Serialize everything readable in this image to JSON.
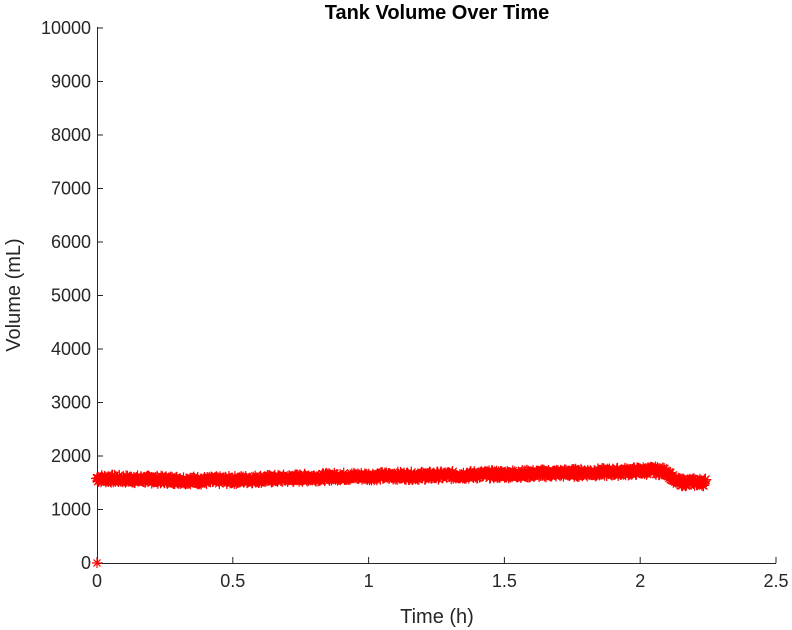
{
  "chart_data": {
    "type": "scatter",
    "title": "Tank Volume Over Time",
    "xlabel": "Time (h)",
    "ylabel": "Volume (mL)",
    "xlim": [
      0,
      2.5
    ],
    "ylim": [
      0,
      10000
    ],
    "xticks": [
      "0",
      "0.5",
      "1",
      "1.5",
      "2",
      "2.5"
    ],
    "yticks": [
      "0",
      "1000",
      "2000",
      "3000",
      "4000",
      "5000",
      "6000",
      "7000",
      "8000",
      "9000",
      "10000"
    ],
    "grid": false,
    "legend": "none",
    "marker": "asterisk",
    "color": "#ff0000",
    "series": [
      {
        "x": [
          0,
          0.1,
          0.2,
          0.3,
          0.4,
          0.5,
          0.6,
          0.7,
          0.8,
          0.9,
          1.0,
          1.1,
          1.2,
          1.3,
          1.4,
          1.5,
          1.6,
          1.7,
          1.8,
          1.9,
          2.0,
          2.05,
          2.1,
          2.13,
          2.16,
          2.2,
          2.24
        ],
        "y": [
          1580,
          1570,
          1560,
          1550,
          1540,
          1550,
          1570,
          1580,
          1600,
          1620,
          1620,
          1630,
          1630,
          1640,
          1650,
          1660,
          1670,
          1680,
          1690,
          1700,
          1720,
          1730,
          1700,
          1520,
          1510,
          1510,
          1510
        ]
      },
      {
        "x": [
          0
        ],
        "y": [
          0
        ]
      }
    ]
  }
}
